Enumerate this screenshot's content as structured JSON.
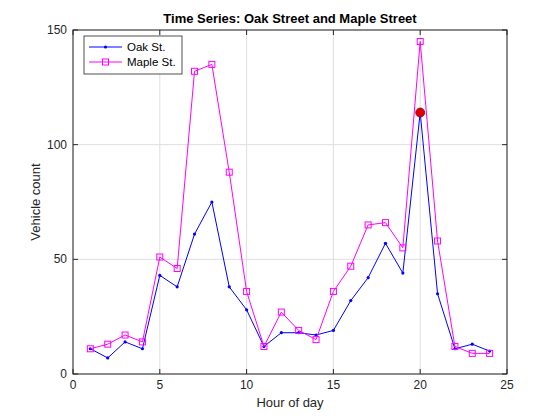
{
  "chart_data": {
    "type": "line",
    "title": "Time Series: Oak Street and Maple Street",
    "x_label": "Hour of day",
    "y_label": "Vehicle count",
    "x": [
      1,
      2,
      3,
      4,
      5,
      6,
      7,
      8,
      9,
      10,
      11,
      12,
      13,
      14,
      15,
      16,
      17,
      18,
      19,
      20,
      21,
      22,
      23,
      24
    ],
    "series": [
      {
        "name": "Oak St.",
        "color": "#0000ff",
        "marker": "point",
        "line_style": "solid",
        "values": [
          11,
          7,
          14,
          11,
          43,
          38,
          61,
          75,
          38,
          28,
          12,
          18,
          18,
          17,
          19,
          32,
          42,
          57,
          44,
          114,
          35,
          11,
          13,
          10
        ]
      },
      {
        "name": "Maple St.",
        "color": "#ff00ff",
        "marker": "square",
        "line_style": "solid",
        "values": [
          11,
          13,
          17,
          14,
          51,
          46,
          132,
          135,
          88,
          36,
          12,
          27,
          19,
          15,
          36,
          47,
          65,
          66,
          55,
          145,
          58,
          12,
          9,
          9
        ]
      }
    ],
    "highlight": {
      "x": 20,
      "y": 114,
      "color": "#e00000"
    },
    "xlim": [
      0,
      25
    ],
    "xticks": [
      0,
      5,
      10,
      15,
      20,
      25
    ],
    "ylim": [
      0,
      150
    ],
    "yticks": [
      0,
      50,
      100,
      150
    ],
    "grid": true,
    "legend": "northwest"
  }
}
